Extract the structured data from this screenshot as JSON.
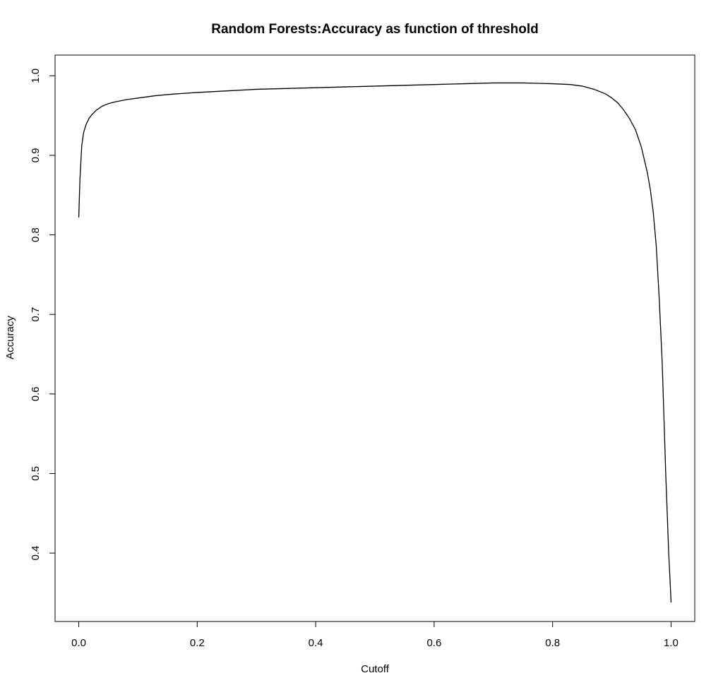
{
  "chart_data": {
    "type": "line",
    "title": "Random Forests:Accuracy as function of threshold",
    "xlabel": "Cutoff",
    "ylabel": "Accuracy",
    "xlim": [
      -0.04,
      1.04
    ],
    "ylim": [
      0.314,
      1.026
    ],
    "x_ticks": [
      0.0,
      0.2,
      0.4,
      0.6,
      0.8,
      1.0
    ],
    "x_tick_labels": [
      "0.0",
      "0.2",
      "0.4",
      "0.6",
      "0.8",
      "1.0"
    ],
    "y_ticks": [
      0.4,
      0.5,
      0.6,
      0.7,
      0.8,
      0.9,
      1.0
    ],
    "y_tick_labels": [
      "0.4",
      "0.5",
      "0.6",
      "0.7",
      "0.8",
      "0.9",
      "1.0"
    ],
    "grid": false,
    "line_color": "#000000",
    "series": [
      {
        "x": [
          0.0,
          0.002,
          0.005,
          0.008,
          0.012,
          0.017,
          0.022,
          0.03,
          0.04,
          0.05,
          0.06,
          0.08,
          0.1,
          0.13,
          0.16,
          0.2,
          0.25,
          0.3,
          0.35,
          0.4,
          0.45,
          0.5,
          0.55,
          0.6,
          0.65,
          0.7,
          0.75,
          0.8,
          0.83,
          0.85,
          0.87,
          0.89,
          0.9,
          0.91,
          0.92,
          0.93,
          0.94,
          0.95,
          0.96,
          0.965,
          0.97,
          0.975,
          0.98,
          0.985,
          0.988,
          0.991,
          0.994,
          0.996,
          0.998,
          0.999,
          1.0
        ],
        "y": [
          0.822,
          0.87,
          0.912,
          0.928,
          0.938,
          0.946,
          0.951,
          0.957,
          0.962,
          0.965,
          0.967,
          0.97,
          0.972,
          0.975,
          0.977,
          0.979,
          0.981,
          0.983,
          0.984,
          0.985,
          0.986,
          0.987,
          0.988,
          0.989,
          0.99,
          0.991,
          0.991,
          0.99,
          0.989,
          0.987,
          0.983,
          0.977,
          0.972,
          0.966,
          0.957,
          0.946,
          0.932,
          0.91,
          0.878,
          0.857,
          0.828,
          0.786,
          0.72,
          0.64,
          0.57,
          0.5,
          0.44,
          0.4,
          0.37,
          0.355,
          0.338
        ]
      }
    ]
  }
}
